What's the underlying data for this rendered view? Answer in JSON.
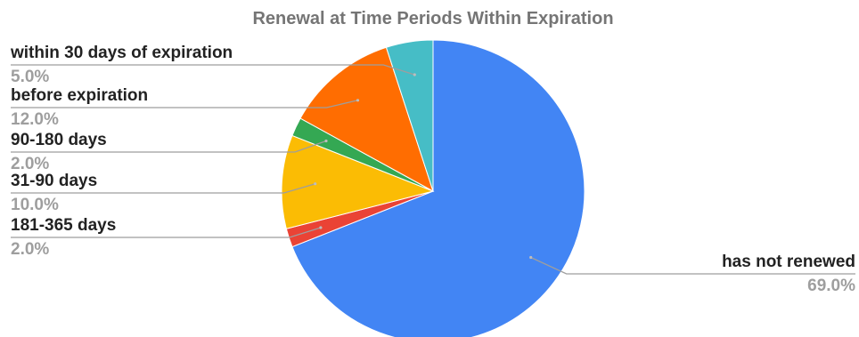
{
  "chart_data": {
    "type": "pie",
    "title": "Renewal at Time Periods Within Expiration",
    "slices": [
      {
        "label": "has not renewed",
        "value": 69.0,
        "display": "69.0%",
        "color": "#4285f4"
      },
      {
        "label": "181-365 days",
        "value": 2.0,
        "display": "2.0%",
        "color": "#ea4335"
      },
      {
        "label": "31-90 days",
        "value": 10.0,
        "display": "10.0%",
        "color": "#fbbc04"
      },
      {
        "label": "90-180 days",
        "value": 2.0,
        "display": "2.0%",
        "color": "#34a853"
      },
      {
        "label": "before expiration",
        "value": 12.0,
        "display": "12.0%",
        "color": "#ff6d01"
      },
      {
        "label": "within 30 days of expiration",
        "value": 5.0,
        "display": "5.0%",
        "color": "#46bdc6"
      }
    ],
    "legend": "none",
    "label_style": "outside labels with leader lines"
  }
}
